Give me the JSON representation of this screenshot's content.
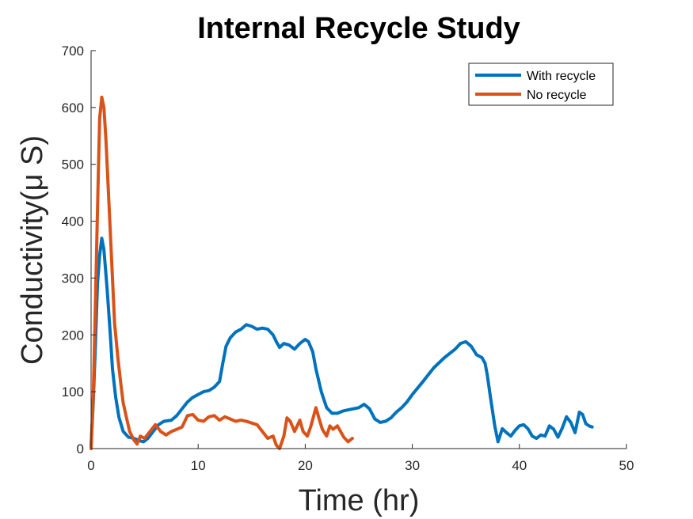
{
  "chart_data": {
    "type": "line",
    "title": "Internal Recycle Study",
    "xlabel": "Time (hr)",
    "ylabel": "Conductivity(μ S)",
    "xlim": [
      0,
      50
    ],
    "ylim": [
      0,
      700
    ],
    "xticks": [
      0,
      10,
      20,
      30,
      40,
      50
    ],
    "yticks": [
      0,
      100,
      200,
      300,
      400,
      500,
      600,
      700
    ],
    "xtick_labels": [
      "0",
      "10",
      "20",
      "30",
      "40",
      "50"
    ],
    "ytick_labels": [
      "0",
      "100",
      "200",
      "300",
      "400",
      "500",
      "600",
      "700"
    ],
    "grid": false,
    "legend": "top-right",
    "series": [
      {
        "name": "With recycle",
        "color": "#0072BD",
        "points": [
          [
            0.0,
            5
          ],
          [
            0.2,
            80
          ],
          [
            0.4,
            180
          ],
          [
            0.6,
            290
          ],
          [
            0.8,
            340
          ],
          [
            1.0,
            370
          ],
          [
            1.2,
            350
          ],
          [
            1.5,
            280
          ],
          [
            1.8,
            200
          ],
          [
            2.0,
            140
          ],
          [
            2.3,
            90
          ],
          [
            2.6,
            55
          ],
          [
            3.0,
            30
          ],
          [
            3.5,
            20
          ],
          [
            4.0,
            18
          ],
          [
            4.5,
            14
          ],
          [
            4.9,
            12
          ],
          [
            5.3,
            18
          ],
          [
            5.8,
            30
          ],
          [
            6.3,
            42
          ],
          [
            6.8,
            48
          ],
          [
            7.5,
            50
          ],
          [
            8.0,
            58
          ],
          [
            8.5,
            70
          ],
          [
            9.0,
            82
          ],
          [
            9.5,
            90
          ],
          [
            10.0,
            95
          ],
          [
            10.5,
            100
          ],
          [
            11.0,
            102
          ],
          [
            11.5,
            108
          ],
          [
            12.0,
            118
          ],
          [
            12.3,
            150
          ],
          [
            12.6,
            180
          ],
          [
            13.0,
            195
          ],
          [
            13.5,
            205
          ],
          [
            14.0,
            210
          ],
          [
            14.5,
            218
          ],
          [
            15.0,
            215
          ],
          [
            15.5,
            210
          ],
          [
            16.0,
            212
          ],
          [
            16.5,
            210
          ],
          [
            17.0,
            200
          ],
          [
            17.3,
            188
          ],
          [
            17.6,
            178
          ],
          [
            18.0,
            185
          ],
          [
            18.5,
            182
          ],
          [
            19.0,
            175
          ],
          [
            19.5,
            185
          ],
          [
            20.0,
            192
          ],
          [
            20.3,
            188
          ],
          [
            20.7,
            170
          ],
          [
            21.0,
            140
          ],
          [
            21.5,
            100
          ],
          [
            22.0,
            72
          ],
          [
            22.5,
            62
          ],
          [
            23.0,
            62
          ],
          [
            23.5,
            66
          ],
          [
            24.0,
            68
          ],
          [
            24.5,
            70
          ],
          [
            25.0,
            72
          ],
          [
            25.5,
            78
          ],
          [
            26.0,
            70
          ],
          [
            26.5,
            52
          ],
          [
            27.0,
            46
          ],
          [
            27.5,
            48
          ],
          [
            28.0,
            54
          ],
          [
            28.5,
            64
          ],
          [
            29.0,
            72
          ],
          [
            29.5,
            82
          ],
          [
            30.0,
            95
          ],
          [
            31.0,
            118
          ],
          [
            32.0,
            142
          ],
          [
            33.0,
            160
          ],
          [
            34.0,
            175
          ],
          [
            34.5,
            185
          ],
          [
            35.0,
            188
          ],
          [
            35.5,
            180
          ],
          [
            36.0,
            165
          ],
          [
            36.5,
            160
          ],
          [
            36.8,
            150
          ],
          [
            37.0,
            130
          ],
          [
            37.3,
            90
          ],
          [
            37.7,
            40
          ],
          [
            38.0,
            12
          ],
          [
            38.4,
            35
          ],
          [
            38.8,
            28
          ],
          [
            39.2,
            22
          ],
          [
            39.6,
            32
          ],
          [
            40.0,
            40
          ],
          [
            40.4,
            42
          ],
          [
            40.8,
            35
          ],
          [
            41.2,
            22
          ],
          [
            41.6,
            18
          ],
          [
            42.0,
            24
          ],
          [
            42.4,
            22
          ],
          [
            42.8,
            40
          ],
          [
            43.2,
            34
          ],
          [
            43.6,
            20
          ],
          [
            44.0,
            36
          ],
          [
            44.4,
            56
          ],
          [
            44.8,
            46
          ],
          [
            45.2,
            28
          ],
          [
            45.6,
            64
          ],
          [
            45.9,
            60
          ],
          [
            46.2,
            44
          ],
          [
            46.5,
            40
          ],
          [
            46.8,
            38
          ]
        ]
      },
      {
        "name": "No recycle",
        "color": "#D95319",
        "points": [
          [
            0.0,
            0
          ],
          [
            0.2,
            90
          ],
          [
            0.4,
            250
          ],
          [
            0.6,
            420
          ],
          [
            0.8,
            580
          ],
          [
            1.0,
            618
          ],
          [
            1.2,
            600
          ],
          [
            1.4,
            540
          ],
          [
            1.6,
            460
          ],
          [
            1.8,
            380
          ],
          [
            2.0,
            300
          ],
          [
            2.2,
            220
          ],
          [
            2.5,
            160
          ],
          [
            2.8,
            110
          ],
          [
            3.0,
            80
          ],
          [
            3.3,
            55
          ],
          [
            3.6,
            30
          ],
          [
            4.0,
            15
          ],
          [
            4.3,
            8
          ],
          [
            4.6,
            22
          ],
          [
            5.0,
            18
          ],
          [
            5.5,
            30
          ],
          [
            6.0,
            42
          ],
          [
            6.5,
            30
          ],
          [
            7.0,
            24
          ],
          [
            7.5,
            30
          ],
          [
            8.0,
            34
          ],
          [
            8.5,
            38
          ],
          [
            9.0,
            58
          ],
          [
            9.5,
            60
          ],
          [
            10.0,
            50
          ],
          [
            10.5,
            48
          ],
          [
            11.0,
            56
          ],
          [
            11.5,
            58
          ],
          [
            12.0,
            50
          ],
          [
            12.5,
            56
          ],
          [
            13.0,
            52
          ],
          [
            13.5,
            48
          ],
          [
            14.0,
            50
          ],
          [
            14.5,
            48
          ],
          [
            15.0,
            45
          ],
          [
            15.5,
            42
          ],
          [
            16.0,
            30
          ],
          [
            16.5,
            18
          ],
          [
            17.0,
            22
          ],
          [
            17.3,
            6
          ],
          [
            17.6,
            0
          ],
          [
            18.0,
            22
          ],
          [
            18.3,
            54
          ],
          [
            18.6,
            48
          ],
          [
            19.0,
            30
          ],
          [
            19.5,
            50
          ],
          [
            19.8,
            30
          ],
          [
            20.2,
            22
          ],
          [
            20.5,
            38
          ],
          [
            21.0,
            72
          ],
          [
            21.3,
            52
          ],
          [
            21.6,
            34
          ],
          [
            22.0,
            22
          ],
          [
            22.3,
            40
          ],
          [
            22.6,
            34
          ],
          [
            23.0,
            40
          ],
          [
            23.3,
            30
          ],
          [
            23.6,
            20
          ],
          [
            24.0,
            12
          ],
          [
            24.4,
            18
          ]
        ]
      }
    ]
  }
}
